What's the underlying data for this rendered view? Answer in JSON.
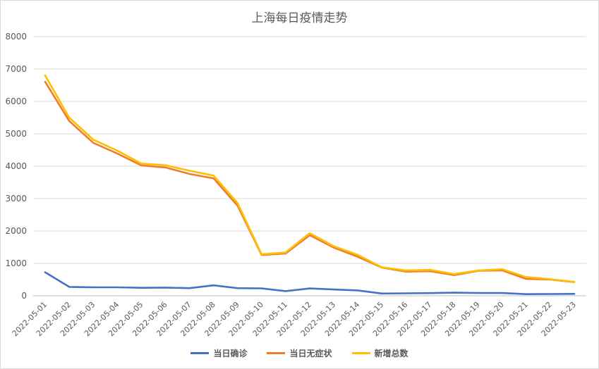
{
  "chart_data": {
    "type": "line",
    "title": "上海每日疫情走势",
    "xlabel": "",
    "ylabel": "",
    "ylim": [
      0,
      8000
    ],
    "yticks": [
      0,
      1000,
      2000,
      3000,
      4000,
      5000,
      6000,
      7000,
      8000
    ],
    "grid": true,
    "legend_position": "bottom",
    "categories": [
      "2022-05-01",
      "2022-05-02",
      "2022-05-03",
      "2022-05-04",
      "2022-05-05",
      "2022-05-06",
      "2022-05-07",
      "2022-05-08",
      "2022-05-09",
      "2022-05-10",
      "2022-05-11",
      "2022-05-12",
      "2022-05-13",
      "2022-05-14",
      "2022-05-15",
      "2022-05-16",
      "2022-05-17",
      "2022-05-18",
      "2022-05-19",
      "2022-05-20",
      "2022-05-21",
      "2022-05-22",
      "2022-05-23"
    ],
    "series": [
      {
        "name": "当日确诊",
        "color": "#4472c4",
        "values": [
          727,
          274,
          260,
          261,
          245,
          253,
          235,
          322,
          234,
          228,
          144,
          227,
          194,
          166,
          69,
          77,
          82,
          96,
          85,
          84,
          50,
          55,
          58
        ]
      },
      {
        "name": "当日无症状",
        "color": "#ed7d31",
        "values": [
          6606,
          5395,
          4722,
          4390,
          4024,
          3961,
          3760,
          3625,
          2780,
          1259,
          1305,
          1869,
          1487,
          1203,
          869,
          746,
          759,
          637,
          770,
          784,
          520,
          503,
          422
        ]
      },
      {
        "name": "新增总数",
        "color": "#ffc000",
        "values": [
          6800,
          5500,
          4820,
          4480,
          4080,
          4030,
          3860,
          3710,
          2860,
          1280,
          1340,
          1930,
          1530,
          1260,
          880,
          780,
          800,
          670,
          780,
          820,
          580,
          510,
          430
        ]
      }
    ]
  }
}
